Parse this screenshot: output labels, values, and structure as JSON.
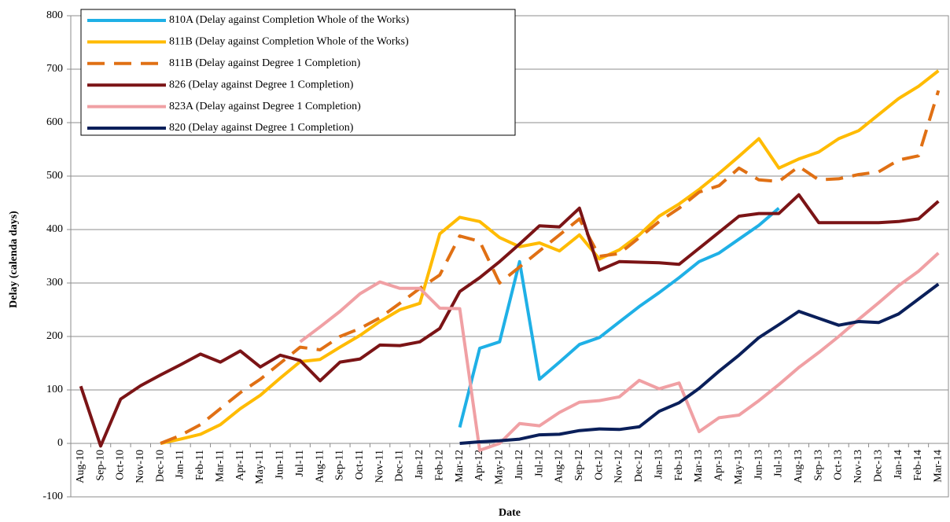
{
  "chart_data": {
    "type": "line",
    "x_label": "Date",
    "y_label": "Delay (calenda days)",
    "categories": [
      "Aug-10",
      "Sep-10",
      "Oct-10",
      "Nov-10",
      "Dec-10",
      "Jan-11",
      "Feb-11",
      "Mar-11",
      "Apr-11",
      "May-11",
      "Jun-11",
      "Jul-11",
      "Aug-11",
      "Sep-11",
      "Oct-11",
      "Nov-11",
      "Dec-11",
      "Jan-12",
      "Feb-12",
      "Mar-12",
      "Apr-12",
      "May-12",
      "Jun-12",
      "Jul-12",
      "Aug-12",
      "Sep-12",
      "Oct-12",
      "Nov-12",
      "Dec-12",
      "Jan-13",
      "Feb-13",
      "Mar-13",
      "Apr-13",
      "May-13",
      "Jun-13",
      "Jul-13",
      "Aug-13",
      "Sep-13",
      "Oct-13",
      "Nov-13",
      "Dec-13",
      "Jan-14",
      "Feb-14",
      "Mar-14"
    ],
    "ylim": [
      -100,
      800
    ],
    "yticks": [
      -100,
      0,
      100,
      200,
      300,
      400,
      500,
      600,
      700,
      800
    ],
    "grid": true,
    "legend": "upper left",
    "series": [
      {
        "name": "810A (Delay against Completion Whole of the Works)",
        "color": "#1fb0e6",
        "dashed": false,
        "values": [
          null,
          null,
          null,
          null,
          null,
          null,
          null,
          null,
          null,
          null,
          null,
          null,
          null,
          null,
          null,
          null,
          null,
          null,
          null,
          30,
          178,
          190,
          340,
          120,
          152,
          185,
          198,
          227,
          256,
          282,
          310,
          340,
          356,
          382,
          408,
          440,
          null,
          null,
          null,
          null,
          null,
          null,
          null,
          null
        ]
      },
      {
        "name": "811B (Delay against Completion Whole of the Works)",
        "color": "#ffbb00",
        "dashed": false,
        "values": [
          null,
          null,
          null,
          null,
          0,
          8,
          17,
          35,
          65,
          90,
          122,
          153,
          157,
          180,
          202,
          228,
          250,
          262,
          392,
          423,
          415,
          385,
          368,
          375,
          360,
          390,
          345,
          362,
          390,
          425,
          448,
          475,
          505,
          537,
          570,
          515,
          532,
          545,
          570,
          585,
          615,
          645,
          668,
          697
        ]
      },
      {
        "name": "811B (Delay against Degree 1 Completion)",
        "color": "#e07014",
        "dashed": true,
        "values": [
          null,
          null,
          null,
          null,
          0,
          15,
          35,
          65,
          95,
          120,
          150,
          180,
          175,
          200,
          215,
          235,
          262,
          290,
          315,
          388,
          378,
          300,
          330,
          360,
          390,
          420,
          350,
          355,
          385,
          415,
          440,
          470,
          482,
          515,
          493,
          490,
          518,
          493,
          495,
          503,
          508,
          530,
          538,
          660
        ]
      },
      {
        "name": "826 (Delay against Degree 1 Completion)",
        "color": "#7b1416",
        "dashed": false,
        "values": [
          107,
          -5,
          83,
          108,
          128,
          147,
          167,
          152,
          173,
          143,
          165,
          155,
          117,
          152,
          158,
          184,
          183,
          190,
          215,
          284,
          310,
          340,
          373,
          407,
          405,
          440,
          324,
          340,
          339,
          338,
          335,
          365,
          395,
          425,
          430,
          430,
          465,
          413,
          413,
          413,
          413,
          415,
          420,
          453
        ]
      },
      {
        "name": "823A (Delay against Degree 1 Completion)",
        "color": "#f0a0a4",
        "dashed": false,
        "values": [
          null,
          null,
          null,
          null,
          null,
          null,
          null,
          null,
          null,
          null,
          null,
          190,
          218,
          247,
          280,
          302,
          290,
          290,
          253,
          252,
          -13,
          0,
          37,
          33,
          58,
          77,
          80,
          87,
          118,
          102,
          113,
          22,
          48,
          53,
          80,
          110,
          142,
          170,
          200,
          232,
          263,
          295,
          322,
          356
        ]
      },
      {
        "name": "820 (Delay against Degree 1 Completion)",
        "color": "#0a1f5a",
        "dashed": false,
        "values": [
          null,
          null,
          null,
          null,
          null,
          null,
          null,
          null,
          null,
          null,
          null,
          null,
          null,
          null,
          null,
          null,
          null,
          null,
          null,
          0,
          3,
          5,
          8,
          16,
          17,
          24,
          27,
          26,
          31,
          60,
          76,
          103,
          135,
          165,
          198,
          222,
          247,
          234,
          221,
          228,
          226,
          242,
          270,
          298
        ]
      }
    ]
  }
}
